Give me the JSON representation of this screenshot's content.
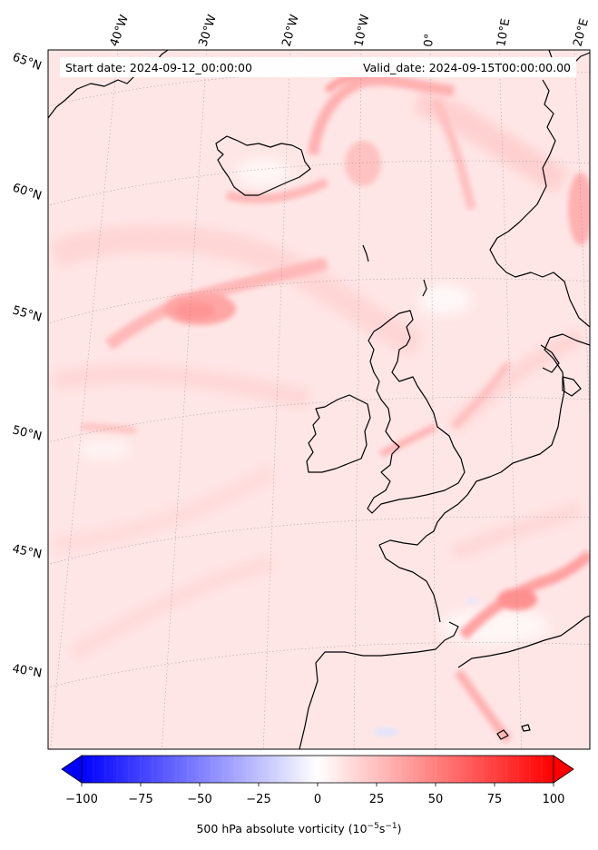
{
  "header": {
    "start_date": "Start date: 2024-09-12_00:00:00",
    "valid_date": "Valid_date: 2024-09-15T00:00:00.00"
  },
  "map": {
    "projection": "lambert-conformal",
    "region": "North-East Atlantic / Western Europe",
    "field": "500 hPa absolute vorticity",
    "coastline_color": "#000000",
    "gridline_style": "dotted grey",
    "longitude_labels": [
      "40°W",
      "30°W",
      "20°W",
      "10°W",
      "0°",
      "10°E",
      "20°E"
    ],
    "latitude_labels": [
      "65°N",
      "60°N",
      "55°N",
      "50°N",
      "45°N",
      "40°N"
    ]
  },
  "colorbar": {
    "cmap": "bwr",
    "min": -100,
    "max": 100,
    "extend": "both",
    "tick_labels": [
      "−100",
      "−75",
      "−50",
      "−25",
      "0",
      "25",
      "50",
      "75",
      "100"
    ],
    "label_main": "500 hPa absolute vorticity (10",
    "label_exp1": "−5",
    "label_mid": "s",
    "label_exp2": "−1",
    "label_end": ")",
    "low_color": "#0000ff",
    "mid_color": "#ffffff",
    "high_color": "#ff0000"
  }
}
